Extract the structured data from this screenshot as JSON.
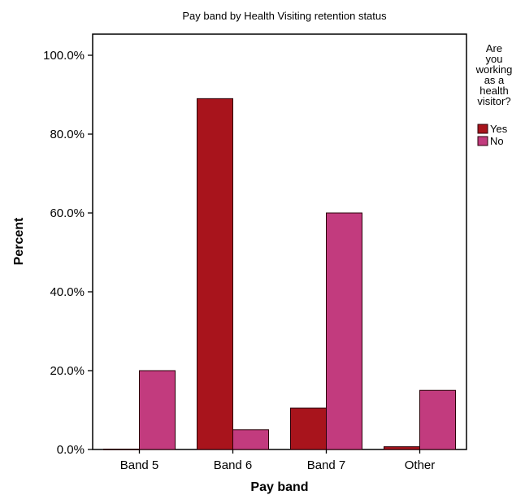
{
  "chart_data": {
    "type": "bar",
    "title": "Pay band by Health Visiting retention status",
    "xlabel": "Pay band",
    "ylabel": "Percent",
    "categories": [
      "Band 5",
      "Band 6",
      "Band 7",
      "Other"
    ],
    "ylim": [
      0,
      100
    ],
    "yticks": [
      "0.0%",
      "20.0%",
      "40.0%",
      "60.0%",
      "80.0%",
      "100.0%"
    ],
    "ytick_values": [
      0,
      20,
      40,
      60,
      80,
      100
    ],
    "grid": false,
    "legend": {
      "title": [
        "Are",
        "you",
        "working",
        "as a",
        "health",
        "visitor?"
      ],
      "placement": "right"
    },
    "series": [
      {
        "name": "Yes",
        "color": "#a8141c",
        "values": [
          0.1,
          89,
          10.5,
          0.7
        ]
      },
      {
        "name": "No",
        "color": "#c23b7e",
        "values": [
          20,
          5,
          60,
          15
        ]
      }
    ]
  }
}
